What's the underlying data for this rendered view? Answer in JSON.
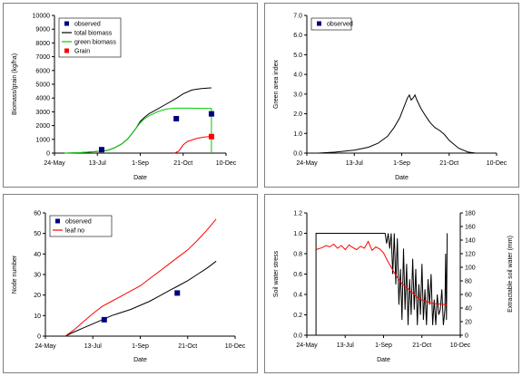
{
  "chart_data": [
    {
      "type": "line",
      "xlabel": "Date",
      "ylabel": "Biomass/grain (kg/ha)",
      "ylim": [
        0,
        10000
      ],
      "y_ticks": [
        "0",
        "1000",
        "2000",
        "3000",
        "4000",
        "5000",
        "6000",
        "7000",
        "8000",
        "9000",
        "10000"
      ],
      "x_ticks": [
        "24-May",
        "13-Jul",
        "1-Sep",
        "21-Oct",
        "10-Dec"
      ],
      "x_tick_days": [
        0,
        50,
        100,
        150,
        200
      ],
      "legend_position": "top-left",
      "legend": [
        {
          "label": "observed",
          "kind": "marker",
          "color": "#000080"
        },
        {
          "label": "total biomass",
          "kind": "line",
          "color": "#000000"
        },
        {
          "label": "green biomass",
          "kind": "line",
          "color": "#00cc00"
        },
        {
          "label": "Grain",
          "kind": "marker",
          "color": "#ff0000"
        }
      ],
      "series": [
        {
          "name": "total biomass",
          "color": "#000000",
          "x": [
            12,
            30,
            45,
            55,
            62,
            70,
            78,
            85,
            90,
            95,
            100,
            105,
            110,
            120,
            130,
            140,
            150,
            160,
            170,
            180,
            183
          ],
          "y": [
            0,
            30,
            100,
            150,
            200,
            380,
            650,
            1000,
            1400,
            1800,
            2300,
            2600,
            2850,
            3200,
            3550,
            3900,
            4300,
            4580,
            4680,
            4730,
            4740
          ]
        },
        {
          "name": "green biomass",
          "color": "#00cc00",
          "x": [
            12,
            30,
            45,
            55,
            62,
            70,
            78,
            85,
            90,
            95,
            100,
            105,
            110,
            120,
            130,
            140,
            150,
            160,
            170,
            180,
            183,
            183
          ],
          "y": [
            0,
            30,
            100,
            150,
            200,
            380,
            650,
            1000,
            1400,
            1800,
            2200,
            2500,
            2700,
            3000,
            3200,
            3260,
            3260,
            3260,
            3250,
            3250,
            3250,
            0
          ]
        },
        {
          "name": "Grain",
          "color": "#ff0000",
          "x": [
            140,
            145,
            150,
            155,
            160,
            165,
            170,
            175,
            180,
            183
          ],
          "y": [
            0,
            150,
            600,
            850,
            950,
            1050,
            1120,
            1170,
            1200,
            1210
          ]
        },
        {
          "name": "observed",
          "color": "#000080",
          "marker": "square",
          "x": [
            55,
            142,
            183
          ],
          "y": [
            250,
            2500,
            2850
          ]
        },
        {
          "name": "Grain",
          "color": "#ff0000",
          "marker": "square",
          "x": [
            183
          ],
          "y": [
            1200
          ]
        }
      ]
    },
    {
      "type": "line",
      "xlabel": "Date",
      "ylabel": "Green area index",
      "ylim": [
        0,
        7
      ],
      "y_ticks": [
        "0.0",
        "1.0",
        "2.0",
        "3.0",
        "4.0",
        "5.0",
        "6.0",
        "7.0"
      ],
      "x_ticks": [
        "24-May",
        "13-Jul",
        "1-Sep",
        "21-Oct",
        "10-Dec"
      ],
      "x_tick_days": [
        0,
        50,
        100,
        150,
        200
      ],
      "legend_position": "top-left",
      "legend": [
        {
          "label": "observed",
          "kind": "marker",
          "color": "#000080"
        }
      ],
      "series": [
        {
          "color": "#000000",
          "x": [
            12,
            30,
            50,
            65,
            75,
            85,
            92,
            98,
            102,
            106,
            108,
            110,
            112,
            114,
            116,
            120,
            125,
            130,
            135,
            140,
            145,
            150,
            160,
            170,
            178
          ],
          "y": [
            0,
            0.05,
            0.15,
            0.3,
            0.5,
            0.85,
            1.3,
            1.8,
            2.3,
            2.8,
            2.95,
            2.7,
            2.8,
            2.95,
            2.7,
            2.3,
            1.9,
            1.55,
            1.3,
            1.15,
            0.95,
            0.65,
            0.25,
            0.05,
            0
          ]
        }
      ]
    },
    {
      "type": "line",
      "xlabel": "Date",
      "ylabel": "Node number",
      "ylim": [
        0,
        60
      ],
      "y_ticks": [
        "0",
        "10",
        "20",
        "30",
        "40",
        "50",
        "60"
      ],
      "x_ticks": [
        "24-May",
        "13-Jul",
        "1-Sep",
        "21-Oct",
        "10-Dec"
      ],
      "x_tick_days": [
        0,
        50,
        100,
        150,
        200
      ],
      "legend_position": "top-left",
      "legend": [
        {
          "label": "observed",
          "kind": "marker",
          "color": "#000080"
        },
        {
          "label": "leaf no",
          "kind": "line",
          "color": "#ff0000"
        }
      ],
      "series": [
        {
          "color": "#000000",
          "x": [
            21,
            30,
            40,
            50,
            60,
            70,
            80,
            90,
            100,
            110,
            120,
            130,
            140,
            150,
            160,
            170,
            180
          ],
          "y": [
            0,
            2,
            4,
            6,
            8,
            10,
            11.5,
            13,
            15,
            17,
            19.5,
            22,
            24.5,
            27,
            30,
            33,
            36.5
          ]
        },
        {
          "name": "leaf no",
          "color": "#ff0000",
          "x": [
            21,
            30,
            40,
            50,
            60,
            70,
            80,
            90,
            100,
            110,
            120,
            130,
            140,
            150,
            160,
            170,
            180
          ],
          "y": [
            0,
            3,
            7,
            11,
            14.5,
            17,
            19.5,
            22,
            24.5,
            28,
            31.5,
            35,
            38.5,
            42,
            46.5,
            51.5,
            57
          ]
        },
        {
          "name": "observed",
          "color": "#000080",
          "marker": "square",
          "x": [
            62,
            139
          ],
          "y": [
            8,
            21
          ]
        }
      ]
    },
    {
      "type": "line",
      "xlabel": "Date",
      "ylabel": "Soil water stress",
      "y2label": "Extractable soil water (mm)",
      "ylim": [
        0,
        1.2
      ],
      "y2lim": [
        0,
        180
      ],
      "y_ticks": [
        "0.0",
        "0.2",
        "0.4",
        "0.6",
        "0.8",
        "1.0",
        "1.2"
      ],
      "y2_ticks": [
        "0",
        "20",
        "40",
        "60",
        "80",
        "100",
        "120",
        "140",
        "160",
        "180"
      ],
      "x_ticks": [
        "24-May",
        "13-Jul",
        "1-Sep",
        "21-Oct",
        "10-Dec"
      ],
      "x_tick_days": [
        0,
        50,
        100,
        150,
        200
      ],
      "series": [
        {
          "color": "#000000",
          "axis": "left",
          "x": [
            12,
            12,
            30,
            60,
            90,
            100,
            102,
            104,
            106,
            108,
            110,
            112,
            114,
            116,
            118,
            120,
            122,
            124,
            126,
            128,
            130,
            132,
            134,
            136,
            138,
            140,
            142,
            144,
            146,
            148,
            150,
            152,
            154,
            156,
            158,
            160,
            162,
            164,
            166,
            168,
            170,
            172,
            174,
            176,
            178,
            180,
            181,
            182,
            183
          ],
          "y": [
            0,
            1.0,
            1.0,
            1.0,
            1.0,
            1.0,
            1.0,
            0.9,
            1.0,
            0.85,
            1.0,
            0.6,
            1.0,
            0.5,
            0.95,
            0.3,
            0.65,
            0.15,
            0.85,
            0.25,
            0.7,
            0.1,
            0.55,
            0.2,
            0.75,
            0.25,
            0.65,
            0.1,
            0.5,
            0.2,
            0.7,
            0.15,
            0.45,
            0.1,
            0.55,
            0.3,
            0.6,
            0.1,
            0.35,
            0.1,
            0.4,
            0.2,
            0.25,
            0.45,
            0.1,
            0.25,
            0.8,
            0.15,
            1.0
          ]
        },
        {
          "color": "#ff0000",
          "axis": "right",
          "x": [
            12,
            20,
            25,
            30,
            35,
            40,
            45,
            50,
            55,
            60,
            65,
            70,
            75,
            80,
            85,
            90,
            95,
            100,
            105,
            110,
            115,
            120,
            125,
            130,
            135,
            140,
            145,
            150,
            155,
            160,
            165,
            170,
            175,
            180,
            183
          ],
          "y": [
            126,
            129,
            132,
            130,
            134,
            128,
            132,
            126,
            133,
            129,
            126,
            131,
            128,
            138,
            125,
            130,
            127,
            121,
            110,
            100,
            90,
            82,
            75,
            70,
            65,
            60,
            55,
            52,
            50,
            48,
            47,
            46,
            46,
            45,
            45
          ]
        }
      ]
    }
  ]
}
